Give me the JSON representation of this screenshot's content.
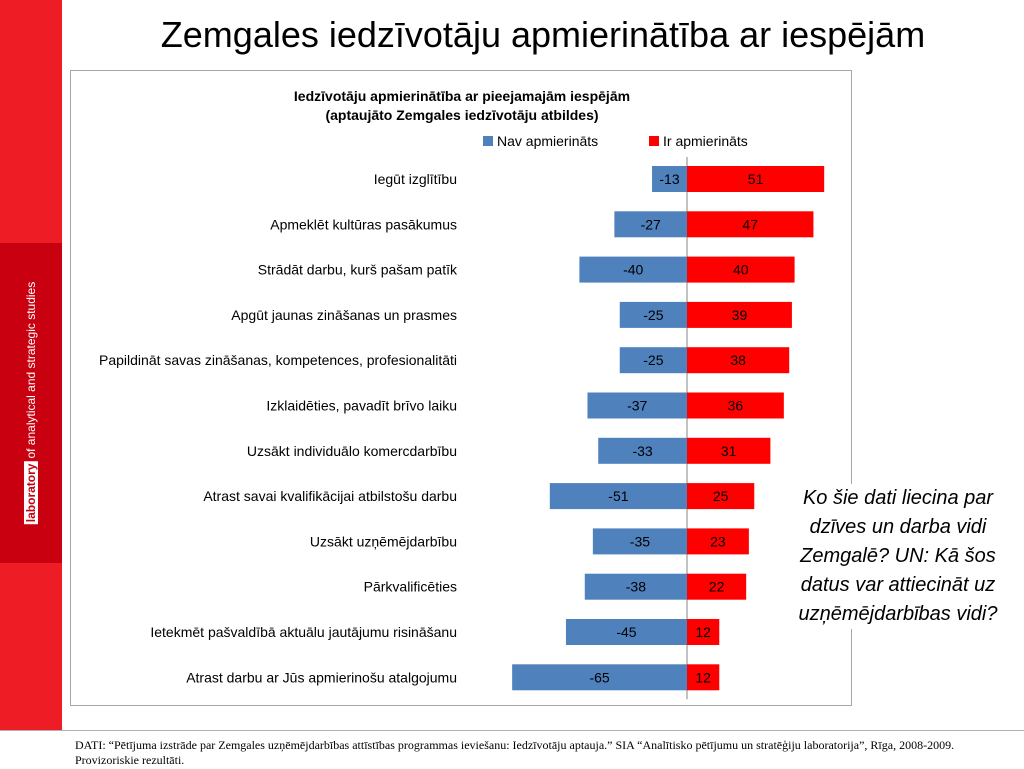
{
  "slide": {
    "title": "Zemgales iedzīvotāju apmierinātība ar iespējām",
    "sidebar_logo": {
      "word_bold": "laboratory",
      "rest": "of analytical and strategic studies"
    },
    "question": "Ko šie dati liecina par dzīves un darba vidi Zemgalē? UN: Kā šos datus var attiecināt uz uzņēmējdarbības vidi?",
    "source": "DATI:  “Pētījuma izstrāde par Zemgales uzņēmējdarbības attīstības programmas ieviešanu: Iedzīvotāju aptauja.” SIA “Analītisko pētījumu un stratēģiju laboratorija”, Rīga, 2008-2009. Provizoriskie rezultāti."
  },
  "chart_data": {
    "type": "bar",
    "orientation": "horizontal",
    "stacked": "diverging",
    "title": "Iedzīvotāju apmierinātība ar pieejamajām iespējām",
    "subtitle": "(aptaujāto Zemgales iedzīvotāju atbildes)",
    "legend_position": "top",
    "categories": [
      "Iegūt izglītību",
      "Apmeklēt kultūras pasākumus",
      "Strādāt darbu, kurš pašam patīk",
      "Apgūt jaunas zināšanas un prasmes",
      "Papildināt savas zināšanas, kompetences, profesionalitāti",
      "Izklaidēties, pavadīt brīvo laiku",
      "Uzsākt individuālo komercdarbību",
      "Atrast savai kvalifikācijai atbilstošu darbu",
      "Uzsākt uzņēmējdarbību",
      "Pārkvalificēties",
      "Ietekmēt pašvaldībā aktuālu jautājumu risināšanu",
      "Atrast darbu ar Jūs apmierinošu atalgojumu"
    ],
    "series": [
      {
        "name": "Nav apmierināts",
        "color": "#4f81bd",
        "values": [
          -13,
          -27,
          -40,
          -25,
          -25,
          -37,
          -33,
          -51,
          -35,
          -38,
          -45,
          -65
        ]
      },
      {
        "name": "Ir apmierināts",
        "color": "#ff0000",
        "values": [
          51,
          47,
          40,
          39,
          38,
          36,
          31,
          25,
          23,
          22,
          12,
          12
        ]
      }
    ],
    "xlim": [
      -65,
      51
    ],
    "grid": false
  }
}
